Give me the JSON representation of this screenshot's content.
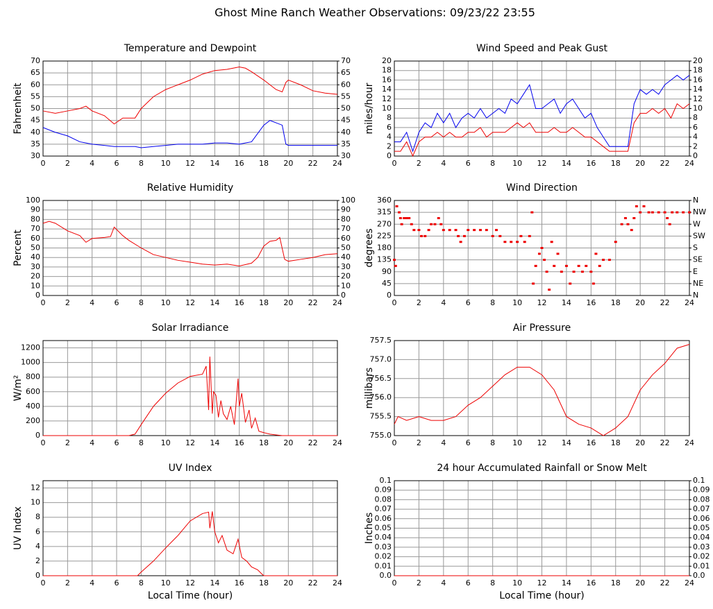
{
  "title": "Ghost Mine Ranch Weather Observations: 09/23/22 23:55",
  "chart_data": [
    {
      "type": "line",
      "title": "Temperature and Dewpoint",
      "ylabel": "Fahrenheit",
      "x": [
        0,
        1,
        2,
        3,
        3.5,
        4,
        5,
        5.8,
        6.5,
        7.5,
        8,
        9,
        10,
        11,
        12,
        13,
        14,
        15,
        16,
        16.5,
        17,
        18,
        18.5,
        19,
        19.5,
        19.8,
        20,
        21,
        22,
        23,
        24
      ],
      "series": [
        {
          "color": "#ee0000",
          "values": [
            49,
            48,
            49,
            50,
            51,
            49,
            47,
            43.5,
            46,
            46,
            50,
            55,
            58,
            60,
            62,
            64.5,
            66,
            66.5,
            67.5,
            67,
            65.5,
            62,
            60,
            58,
            57,
            61,
            62,
            60,
            57.5,
            56.5,
            56
          ]
        },
        {
          "color": "#0000ee",
          "values": [
            42,
            40,
            38.5,
            36,
            35.5,
            35,
            34.5,
            34,
            34,
            34,
            33.5,
            34,
            34.5,
            35,
            35,
            35,
            35.5,
            35.5,
            35,
            35.5,
            36,
            43,
            45,
            44,
            43,
            35,
            34.5,
            34.5,
            34.5,
            34.5,
            34.5
          ]
        }
      ],
      "xlim": [
        0,
        24
      ],
      "xticks": [
        0,
        2,
        4,
        6,
        8,
        10,
        12,
        14,
        16,
        18,
        20,
        22,
        24
      ],
      "ylim": [
        30,
        70
      ],
      "yticks": [
        30,
        35,
        40,
        45,
        50,
        55,
        60,
        65,
        70
      ],
      "y2lim": [
        30,
        70
      ],
      "y2ticks": [
        30,
        35,
        40,
        45,
        50,
        55,
        60,
        65,
        70
      ],
      "grid": true
    },
    {
      "type": "line",
      "title": "Wind Speed and Peak Gust",
      "ylabel": "miles/hour",
      "x": [
        0,
        0.5,
        1,
        1.5,
        2,
        2.5,
        3,
        3.5,
        4,
        4.5,
        5,
        5.5,
        6,
        6.5,
        7,
        7.5,
        8,
        8.5,
        9,
        9.5,
        10,
        10.5,
        11,
        11.5,
        12,
        12.5,
        13,
        13.5,
        14,
        14.5,
        15,
        15.5,
        16,
        16.5,
        17,
        17.5,
        18,
        18.5,
        19,
        19.5,
        20,
        20.5,
        21,
        21.5,
        22,
        22.5,
        23,
        23.5,
        24
      ],
      "series": [
        {
          "color": "#0000ee",
          "values": [
            3,
            3,
            5,
            1,
            5,
            7,
            6,
            9,
            7,
            9,
            6,
            8,
            9,
            8,
            10,
            8,
            9,
            10,
            9,
            12,
            11,
            13,
            15,
            10,
            10,
            11,
            12,
            9,
            11,
            12,
            10,
            8,
            9,
            6,
            4,
            2,
            2,
            2,
            2,
            11,
            14,
            13,
            14,
            13,
            15,
            16,
            17,
            16,
            17
          ]
        },
        {
          "color": "#ee0000",
          "values": [
            1,
            1,
            3,
            0,
            3,
            4,
            4,
            5,
            4,
            5,
            4,
            4,
            5,
            5,
            6,
            4,
            5,
            5,
            5,
            6,
            7,
            6,
            7,
            5,
            5,
            5,
            6,
            5,
            5,
            6,
            5,
            4,
            4,
            3,
            2,
            1,
            1,
            1,
            1,
            7,
            9,
            9,
            10,
            9,
            10,
            8,
            11,
            10,
            11
          ]
        }
      ],
      "xlim": [
        0,
        24
      ],
      "xticks": [
        0,
        2,
        4,
        6,
        8,
        10,
        12,
        14,
        16,
        18,
        20,
        22,
        24
      ],
      "ylim": [
        0,
        20
      ],
      "yticks": [
        0,
        2,
        4,
        6,
        8,
        10,
        12,
        14,
        16,
        18,
        20
      ],
      "y2lim": [
        0,
        20
      ],
      "y2ticks": [
        0,
        2,
        4,
        6,
        8,
        10,
        12,
        14,
        16,
        18,
        20
      ],
      "grid": true
    },
    {
      "type": "line",
      "title": "Relative Humidity",
      "ylabel": "Percent",
      "x": [
        0,
        0.5,
        1,
        2,
        3,
        3.5,
        4,
        5,
        5.5,
        5.8,
        6.5,
        7,
        8,
        9,
        10,
        11,
        12,
        13,
        14,
        15,
        16,
        17,
        17.5,
        18,
        18.5,
        19,
        19.3,
        19.7,
        20,
        21,
        22,
        23,
        24
      ],
      "series": [
        {
          "color": "#ee0000",
          "values": [
            76,
            78,
            76,
            68,
            63,
            56,
            60,
            61,
            62,
            72,
            63,
            58,
            50,
            43,
            40,
            37,
            35,
            33,
            32,
            33,
            31,
            34,
            40,
            52,
            57,
            58,
            61,
            38,
            36,
            38,
            40,
            43,
            44
          ]
        }
      ],
      "xlim": [
        0,
        24
      ],
      "xticks": [
        0,
        2,
        4,
        6,
        8,
        10,
        12,
        14,
        16,
        18,
        20,
        22,
        24
      ],
      "ylim": [
        0,
        100
      ],
      "yticks": [
        0,
        10,
        20,
        30,
        40,
        50,
        60,
        70,
        80,
        90,
        100
      ],
      "y2lim": [
        0,
        100
      ],
      "y2ticks": [
        0,
        10,
        20,
        30,
        40,
        50,
        60,
        70,
        80,
        90,
        100
      ],
      "grid": true
    },
    {
      "type": "scatter",
      "title": "Wind Direction",
      "ylabel": "degrees",
      "x": [
        0,
        0.1,
        0.2,
        0.4,
        0.5,
        0.6,
        0.8,
        1,
        1.2,
        1.4,
        1.6,
        2,
        2.2,
        2.5,
        2.8,
        3,
        3.3,
        3.6,
        3.8,
        4,
        4.5,
        5,
        5.2,
        5.4,
        5.7,
        6,
        6.5,
        7,
        7.5,
        8,
        8.3,
        8.6,
        9,
        9.5,
        10,
        10.3,
        10.6,
        11,
        11.2,
        11.3,
        11.5,
        11.8,
        12,
        12.2,
        12.4,
        12.6,
        12.8,
        13,
        13.3,
        13.6,
        14,
        14.3,
        14.6,
        15,
        15.3,
        15.6,
        16,
        16.2,
        16.4,
        16.7,
        17,
        17.5,
        18,
        18.5,
        18.8,
        19,
        19.3,
        19.5,
        19.7,
        20,
        20.3,
        20.7,
        21,
        21.5,
        22,
        22.2,
        22.4,
        22.6,
        23,
        23.5,
        24
      ],
      "series": [
        {
          "color": "#ee0000",
          "values": [
            135,
            112,
            338,
            315,
            293,
            270,
            293,
            293,
            293,
            270,
            248,
            248,
            225,
            225,
            248,
            270,
            270,
            293,
            270,
            248,
            248,
            248,
            225,
            203,
            225,
            248,
            248,
            248,
            248,
            225,
            248,
            225,
            203,
            203,
            203,
            225,
            203,
            225,
            315,
            45,
            112,
            158,
            180,
            135,
            90,
            22,
            203,
            112,
            158,
            90,
            112,
            45,
            90,
            112,
            90,
            112,
            90,
            45,
            158,
            112,
            135,
            135,
            203,
            270,
            293,
            270,
            248,
            293,
            338,
            315,
            338,
            315,
            315,
            315,
            315,
            293,
            270,
            315,
            315,
            315,
            315
          ]
        }
      ],
      "xlim": [
        0,
        24
      ],
      "xticks": [
        0,
        2,
        4,
        6,
        8,
        10,
        12,
        14,
        16,
        18,
        20,
        22,
        24
      ],
      "ylim": [
        0,
        360
      ],
      "yticks": [
        0,
        45,
        90,
        135,
        180,
        225,
        270,
        315,
        360
      ],
      "y2lim": [
        0,
        360
      ],
      "y2ticks": [
        {
          "value": 0,
          "label": "N"
        },
        {
          "value": 45,
          "label": "NE"
        },
        {
          "value": 90,
          "label": "E"
        },
        {
          "value": 135,
          "label": "SE"
        },
        {
          "value": 180,
          "label": "S"
        },
        {
          "value": 225,
          "label": "SW"
        },
        {
          "value": 270,
          "label": "W"
        },
        {
          "value": 315,
          "label": "NW"
        },
        {
          "value": 360,
          "label": "N"
        }
      ],
      "grid": true
    },
    {
      "type": "line",
      "title": "Solar Irradiance",
      "ylabel": "W/m²",
      "x": [
        0,
        7,
        7.5,
        8,
        9,
        10,
        11,
        12,
        13,
        13.3,
        13.5,
        13.6,
        13.8,
        13.9,
        14.1,
        14.3,
        14.5,
        14.7,
        15,
        15.3,
        15.6,
        15.9,
        16,
        16.2,
        16.5,
        16.8,
        17,
        17.3,
        17.6,
        18,
        18.5,
        19,
        19.5,
        24
      ],
      "series": [
        {
          "color": "#ee0000",
          "values": [
            0,
            0,
            20,
            150,
            400,
            580,
            720,
            810,
            840,
            950,
            350,
            1080,
            300,
            600,
            550,
            250,
            480,
            300,
            220,
            400,
            150,
            780,
            400,
            580,
            180,
            350,
            100,
            240,
            60,
            40,
            20,
            10,
            0,
            0
          ]
        }
      ],
      "xlim": [
        0,
        24
      ],
      "xticks": [
        0,
        2,
        4,
        6,
        8,
        10,
        12,
        14,
        16,
        18,
        20,
        22,
        24
      ],
      "ylim": [
        0,
        1300
      ],
      "yticks": [
        0,
        200,
        400,
        600,
        800,
        1000,
        1200
      ],
      "grid": true
    },
    {
      "type": "line",
      "title": "Air Pressure",
      "ylabel": "millibars",
      "x": [
        0,
        0.3,
        1,
        2,
        3,
        4,
        5,
        6,
        7,
        8,
        9,
        10,
        11,
        12,
        13,
        14,
        15,
        16,
        16.5,
        17,
        17.5,
        18,
        19,
        20,
        21,
        22,
        23,
        24
      ],
      "series": [
        {
          "color": "#ee0000",
          "values": [
            755.3,
            755.5,
            755.4,
            755.5,
            755.4,
            755.4,
            755.5,
            755.8,
            756.0,
            756.3,
            756.6,
            756.8,
            756.8,
            756.6,
            756.2,
            755.5,
            755.3,
            755.2,
            755.1,
            755.0,
            755.1,
            755.2,
            755.5,
            756.2,
            756.6,
            756.9,
            757.3,
            757.4
          ]
        }
      ],
      "xlim": [
        0,
        24
      ],
      "xticks": [
        0,
        2,
        4,
        6,
        8,
        10,
        12,
        14,
        16,
        18,
        20,
        22,
        24
      ],
      "ylim": [
        755,
        757.5
      ],
      "yticks": [
        {
          "value": 755,
          "label": "755.0"
        },
        755.5,
        {
          "value": 756,
          "label": "756.0"
        },
        756.5,
        {
          "value": 757,
          "label": "757.0"
        },
        757.5
      ],
      "grid": true
    },
    {
      "type": "line",
      "title": "UV Index",
      "ylabel": "UV Index",
      "xlabel": "Local Time (hour)",
      "x": [
        0,
        7.7,
        8,
        9,
        10,
        11,
        12,
        13,
        13.5,
        13.6,
        13.8,
        14,
        14.3,
        14.6,
        15,
        15.5,
        15.9,
        16.2,
        16.6,
        17,
        17.5,
        17.8,
        18,
        24
      ],
      "series": [
        {
          "color": "#ee0000",
          "values": [
            0,
            0,
            0.5,
            2,
            3.8,
            5.5,
            7.5,
            8.5,
            8.7,
            6.5,
            8.8,
            6,
            4.5,
            5.5,
            3.5,
            3,
            5,
            2.5,
            2,
            1.2,
            0.8,
            0.3,
            0,
            0
          ]
        }
      ],
      "xlim": [
        0,
        24
      ],
      "xticks": [
        0,
        2,
        4,
        6,
        8,
        10,
        12,
        14,
        16,
        18,
        20,
        22,
        24
      ],
      "ylim": [
        0,
        13
      ],
      "yticks": [
        0,
        2,
        4,
        6,
        8,
        10,
        12
      ],
      "grid": true
    },
    {
      "type": "line",
      "title": "24 hour Accumulated Rainfall or Snow Melt",
      "ylabel": "Inches",
      "xlabel": "Local Time (hour)",
      "x": [
        0,
        24
      ],
      "series": [
        {
          "color": "#ee0000",
          "values": [
            0,
            0
          ]
        }
      ],
      "xlim": [
        0,
        24
      ],
      "xticks": [
        0,
        2,
        4,
        6,
        8,
        10,
        12,
        14,
        16,
        18,
        20,
        22,
        24
      ],
      "ylim": [
        0,
        0.1
      ],
      "yticks": [
        {
          "value": 0,
          "label": "0.0"
        },
        0.01,
        0.02,
        0.03,
        0.04,
        0.05,
        0.06,
        0.07,
        0.08,
        0.09,
        0.1
      ],
      "y2lim": [
        0,
        0.1
      ],
      "y2ticks": [
        {
          "value": 0,
          "label": "0.0"
        },
        0.01,
        0.02,
        0.03,
        0.04,
        0.05,
        0.06,
        0.07,
        0.08,
        0.09,
        0.1
      ],
      "grid": true
    }
  ]
}
